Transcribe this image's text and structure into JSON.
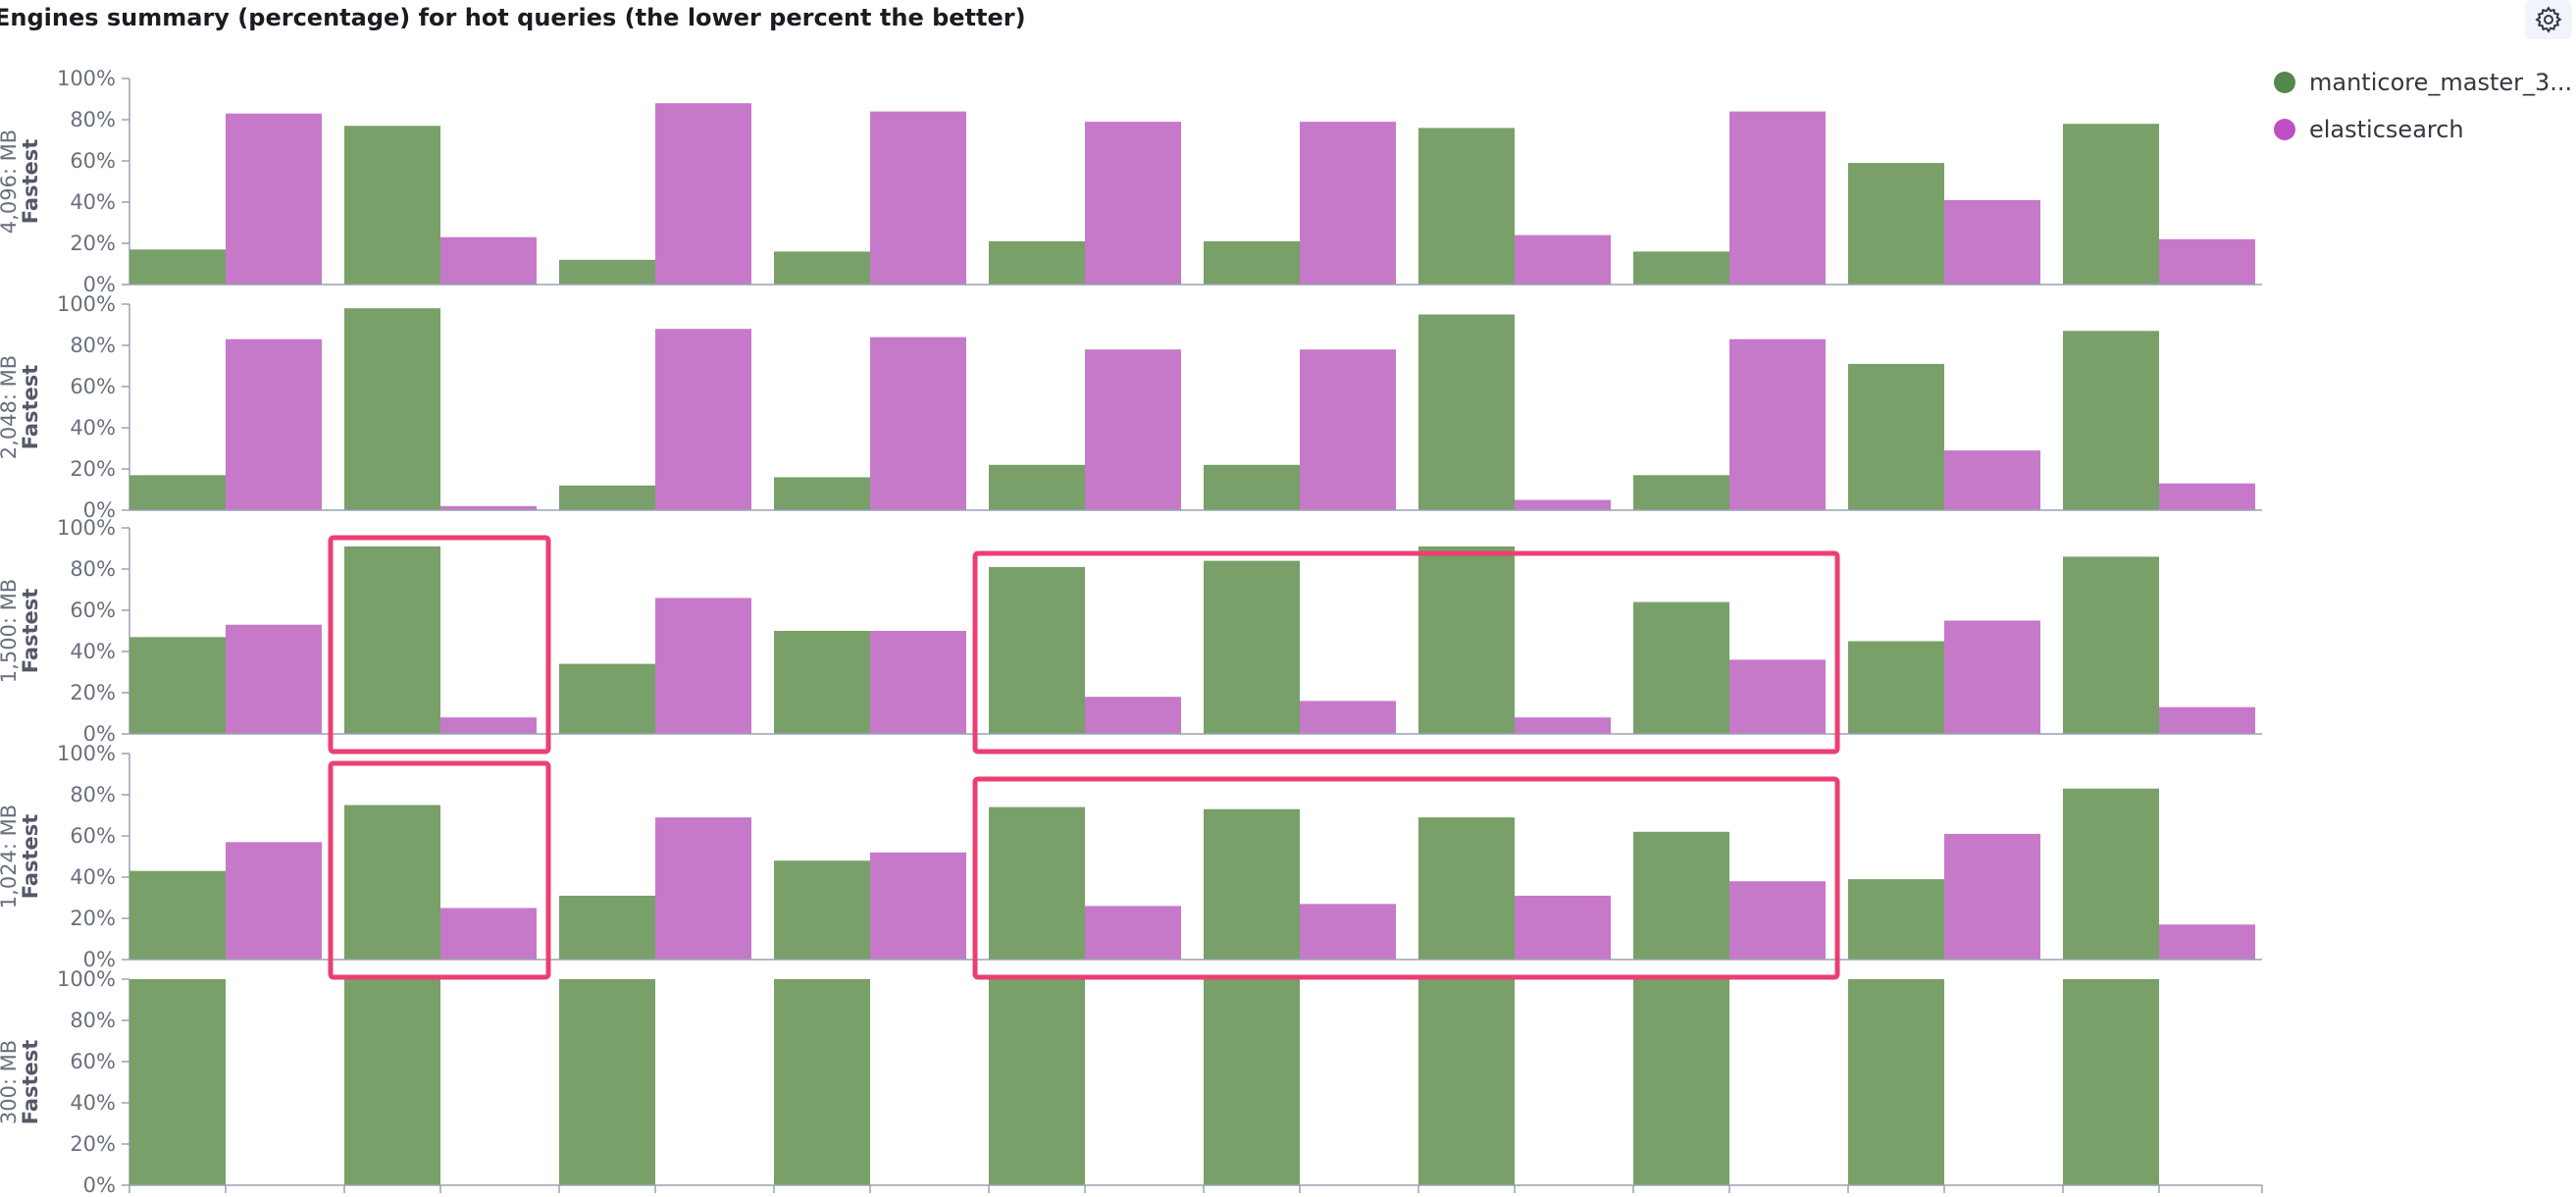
{
  "header": {
    "title": "Engines summary (percentage) for hot queries (the lower percent the better)"
  },
  "icons": {
    "settings": "gear-icon"
  },
  "colors": {
    "series_manticore": "#78a068",
    "series_elasticsearch": "#c679c9",
    "highlight_box": "#eb3f72",
    "axis": "#98a2b3"
  },
  "legend": [
    {
      "name": "manticore_master_3...",
      "color": "#54874a"
    },
    {
      "name": "elasticsearch",
      "color": "#c04fc4"
    }
  ],
  "chart_data": {
    "type": "bar",
    "layout": "small-multiples",
    "facet_label_suffix": "Fastest",
    "y_ticks": [
      "100%",
      "80%",
      "60%",
      "40%",
      "20%",
      "0%"
    ],
    "ylim": [
      0,
      100
    ],
    "legend_position": "top-right",
    "num_queries": 10,
    "rows": [
      {
        "label": "4,096: MB",
        "sublabel": "Fastest",
        "series": [
          {
            "name": "manticore_master_3...",
            "values": [
              17,
              77,
              12,
              16,
              21,
              21,
              76,
              16,
              59,
              78
            ]
          },
          {
            "name": "elasticsearch",
            "values": [
              83,
              23,
              88,
              84,
              79,
              79,
              24,
              84,
              41,
              22
            ]
          }
        ]
      },
      {
        "label": "2,048: MB",
        "sublabel": "Fastest",
        "series": [
          {
            "name": "manticore_master_3...",
            "values": [
              17,
              98,
              12,
              16,
              22,
              22,
              95,
              17,
              71,
              87
            ]
          },
          {
            "name": "elasticsearch",
            "values": [
              83,
              2,
              88,
              84,
              78,
              78,
              5,
              83,
              29,
              13
            ]
          }
        ]
      },
      {
        "label": "1,500: MB",
        "sublabel": "Fastest",
        "series": [
          {
            "name": "manticore_master_3...",
            "values": [
              47,
              91,
              34,
              50,
              81,
              84,
              91,
              64,
              45,
              86
            ]
          },
          {
            "name": "elasticsearch",
            "values": [
              53,
              8,
              66,
              50,
              18,
              16,
              8,
              36,
              55,
              13
            ]
          }
        ]
      },
      {
        "label": "1,024: MB",
        "sublabel": "Fastest",
        "series": [
          {
            "name": "manticore_master_3...",
            "values": [
              43,
              75,
              31,
              48,
              74,
              73,
              69,
              62,
              39,
              83
            ]
          },
          {
            "name": "elasticsearch",
            "values": [
              57,
              25,
              69,
              52,
              26,
              27,
              31,
              38,
              61,
              17
            ]
          }
        ]
      },
      {
        "label": "300: MB",
        "sublabel": "Fastest",
        "series": [
          {
            "name": "manticore_master_3...",
            "values": [
              100,
              100,
              100,
              100,
              100,
              100,
              100,
              100,
              100,
              100
            ]
          },
          {
            "name": "elasticsearch",
            "values": [
              0,
              0,
              0,
              0,
              0,
              0,
              0,
              0,
              0,
              0
            ]
          }
        ]
      }
    ],
    "highlights": [
      {
        "row": 2,
        "from_query": 1,
        "to_query": 1
      },
      {
        "row": 2,
        "from_query": 4,
        "to_query": 7
      },
      {
        "row": 3,
        "from_query": 1,
        "to_query": 1
      },
      {
        "row": 3,
        "from_query": 4,
        "to_query": 7
      }
    ]
  }
}
